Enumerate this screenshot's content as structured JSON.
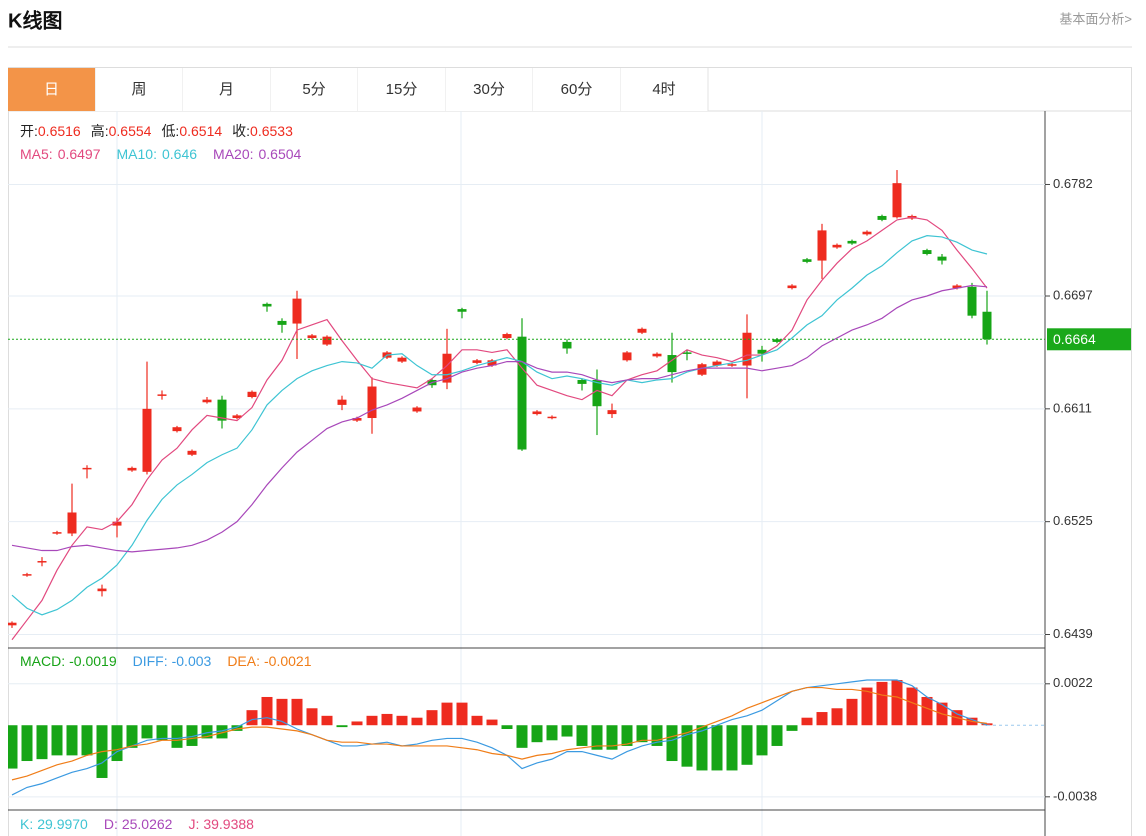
{
  "header": {
    "title": "K线图",
    "link": "基本面分析>"
  },
  "tabs": [
    "日",
    "周",
    "月",
    "5分",
    "15分",
    "30分",
    "60分",
    "4时"
  ],
  "active_tab": 0,
  "chart_data": [
    {
      "type": "candlestick",
      "ylim": [
        0.6431,
        0.6838
      ],
      "yticks": [
        0.6439,
        0.6525,
        0.6611,
        0.6697,
        0.6782
      ],
      "grid": true,
      "info": [
        {
          "label": "开:",
          "value": 0.6516
        },
        {
          "label": "高:",
          "value": 0.6554
        },
        {
          "label": "低:",
          "value": 0.6514
        },
        {
          "label": "收:",
          "value": 0.6533
        }
      ],
      "up_color": "#ee2b1f",
      "down_color": "#16a516",
      "last_price": 0.6664,
      "last_price_color": "#1aa81a",
      "open": [
        0.6446,
        0.6484,
        0.6494,
        0.6516,
        0.6516,
        0.6565,
        0.6472,
        0.6522,
        0.6564,
        0.6563,
        0.6621,
        0.6594,
        0.6576,
        0.6616,
        0.6618,
        0.6604,
        0.662,
        0.6691,
        0.6678,
        0.6676,
        0.6665,
        0.666,
        0.6614,
        0.6602,
        0.6604,
        0.665,
        0.6647,
        0.6609,
        0.6633,
        0.6631,
        0.6687,
        0.6646,
        0.6644,
        0.6665,
        0.6666,
        0.6607,
        0.6604,
        0.6662,
        0.6633,
        0.6633,
        0.6607,
        0.6648,
        0.6669,
        0.6651,
        0.6652,
        0.6654,
        0.6637,
        0.6644,
        0.6644,
        0.6644,
        0.6656,
        0.6664,
        0.6703,
        0.6725,
        0.6724,
        0.6734,
        0.6739,
        0.6744,
        0.6758,
        0.6757,
        0.6756,
        0.6732,
        0.6727,
        0.6703,
        0.6704,
        0.6685
      ],
      "high": [
        0.6449,
        0.6486,
        0.6498,
        0.6518,
        0.6554,
        0.6568,
        0.6477,
        0.6528,
        0.6567,
        0.6647,
        0.6625,
        0.6598,
        0.658,
        0.662,
        0.6621,
        0.6607,
        0.6625,
        0.6692,
        0.668,
        0.6701,
        0.6668,
        0.6667,
        0.6621,
        0.6605,
        0.6635,
        0.6655,
        0.6651,
        0.6613,
        0.6634,
        0.6672,
        0.6688,
        0.6649,
        0.6649,
        0.6669,
        0.668,
        0.661,
        0.6606,
        0.6664,
        0.6634,
        0.6641,
        0.6615,
        0.6655,
        0.6673,
        0.6654,
        0.6669,
        0.6656,
        0.6646,
        0.6648,
        0.6646,
        0.6683,
        0.6659,
        0.6665,
        0.6706,
        0.6726,
        0.6752,
        0.6737,
        0.674,
        0.6747,
        0.6759,
        0.6793,
        0.6759,
        0.6733,
        0.6729,
        0.6706,
        0.6707,
        0.6701
      ],
      "low": [
        0.6444,
        0.6483,
        0.6491,
        0.6515,
        0.6514,
        0.6558,
        0.6468,
        0.6513,
        0.6563,
        0.6561,
        0.6618,
        0.6593,
        0.6575,
        0.6615,
        0.6596,
        0.6603,
        0.6619,
        0.6685,
        0.6669,
        0.6649,
        0.6664,
        0.6659,
        0.661,
        0.6601,
        0.6592,
        0.6649,
        0.6646,
        0.6608,
        0.6627,
        0.6626,
        0.668,
        0.6645,
        0.6643,
        0.6664,
        0.6579,
        0.6606,
        0.6603,
        0.6653,
        0.6625,
        0.6591,
        0.6604,
        0.6647,
        0.6668,
        0.665,
        0.6631,
        0.6648,
        0.6636,
        0.6643,
        0.6643,
        0.6619,
        0.6647,
        0.6661,
        0.6702,
        0.6722,
        0.671,
        0.6733,
        0.6736,
        0.6743,
        0.6754,
        0.6756,
        0.6755,
        0.6728,
        0.6721,
        0.6702,
        0.668,
        0.666
      ],
      "close": [
        0.6448,
        0.6485,
        0.6495,
        0.6517,
        0.6532,
        0.6566,
        0.6474,
        0.6525,
        0.6566,
        0.6611,
        0.6622,
        0.6597,
        0.6579,
        0.6618,
        0.6602,
        0.6606,
        0.6624,
        0.6689,
        0.6675,
        0.6695,
        0.6667,
        0.6666,
        0.6618,
        0.6604,
        0.6628,
        0.6654,
        0.665,
        0.6612,
        0.6629,
        0.6653,
        0.6685,
        0.6648,
        0.6648,
        0.6668,
        0.658,
        0.6609,
        0.6605,
        0.6657,
        0.663,
        0.6613,
        0.661,
        0.6654,
        0.6672,
        0.6653,
        0.6639,
        0.6653,
        0.6645,
        0.6647,
        0.6645,
        0.6669,
        0.6653,
        0.6662,
        0.6705,
        0.6723,
        0.6747,
        0.6736,
        0.6737,
        0.6746,
        0.6755,
        0.6783,
        0.6758,
        0.6729,
        0.6724,
        0.6705,
        0.6682,
        0.6664
      ],
      "series": [
        {
          "name": "MA5:",
          "readout": 0.6497,
          "color": "#e2497f",
          "values": [
            0.6435,
            0.645,
            0.6465,
            0.6488,
            0.6507,
            0.6521,
            0.6519,
            0.6525,
            0.6538,
            0.6557,
            0.6572,
            0.6581,
            0.6595,
            0.6606,
            0.6604,
            0.6602,
            0.6612,
            0.6633,
            0.6648,
            0.6671,
            0.6675,
            0.6679,
            0.6663,
            0.6648,
            0.6634,
            0.6631,
            0.6629,
            0.6627,
            0.6634,
            0.6644,
            0.6656,
            0.6656,
            0.6654,
            0.6656,
            0.6642,
            0.6629,
            0.6625,
            0.6621,
            0.6618,
            0.6625,
            0.6621,
            0.6633,
            0.6637,
            0.664,
            0.6648,
            0.6656,
            0.6652,
            0.665,
            0.6647,
            0.6652,
            0.6652,
            0.6659,
            0.6671,
            0.6694,
            0.6709,
            0.6722,
            0.6733,
            0.6739,
            0.6747,
            0.6755,
            0.6757,
            0.6755,
            0.6747,
            0.6732,
            0.6718,
            0.6703
          ]
        },
        {
          "name": "MA10:",
          "readout": 0.646,
          "color": "#3ec4d3",
          "values": [
            0.6469,
            0.6459,
            0.6454,
            0.6458,
            0.6465,
            0.6475,
            0.6482,
            0.6492,
            0.6507,
            0.6526,
            0.6542,
            0.6553,
            0.6561,
            0.657,
            0.6576,
            0.6581,
            0.6595,
            0.6614,
            0.6625,
            0.6634,
            0.664,
            0.6644,
            0.6647,
            0.6646,
            0.6642,
            0.6652,
            0.6653,
            0.6644,
            0.6637,
            0.6637,
            0.664,
            0.6644,
            0.6647,
            0.665,
            0.6647,
            0.6639,
            0.6634,
            0.6636,
            0.6634,
            0.6631,
            0.6629,
            0.6633,
            0.6631,
            0.6633,
            0.6634,
            0.6639,
            0.6642,
            0.6644,
            0.6646,
            0.6648,
            0.6652,
            0.6656,
            0.6665,
            0.6675,
            0.6682,
            0.6694,
            0.6703,
            0.6713,
            0.672,
            0.673,
            0.6739,
            0.6743,
            0.6742,
            0.6738,
            0.6732,
            0.6729
          ]
        },
        {
          "name": "MA20:",
          "readout": 0.6504,
          "color": "#a848ba",
          "values": [
            0.6507,
            0.6505,
            0.6503,
            0.6503,
            0.6506,
            0.6507,
            0.6505,
            0.6503,
            0.6502,
            0.6503,
            0.6504,
            0.6505,
            0.6507,
            0.6511,
            0.6517,
            0.6525,
            0.6538,
            0.6553,
            0.6566,
            0.6578,
            0.6587,
            0.6596,
            0.6601,
            0.6604,
            0.661,
            0.6614,
            0.6619,
            0.6625,
            0.6631,
            0.6634,
            0.6639,
            0.6642,
            0.6644,
            0.6647,
            0.6647,
            0.6642,
            0.6639,
            0.6639,
            0.6637,
            0.6633,
            0.6631,
            0.6633,
            0.6634,
            0.6634,
            0.6637,
            0.664,
            0.6642,
            0.6642,
            0.6642,
            0.6642,
            0.664,
            0.6642,
            0.6644,
            0.665,
            0.6659,
            0.6665,
            0.6671,
            0.6675,
            0.668,
            0.6688,
            0.6694,
            0.6697,
            0.6701,
            0.6703,
            0.6705,
            0.6704
          ]
        }
      ]
    },
    {
      "type": "macd",
      "ylim": [
        -0.0045,
        0.0041
      ],
      "yticks": [
        -0.0038,
        0.0022
      ],
      "grid": true,
      "name": "MACD:",
      "readout": -0.0019,
      "color": "#17a317",
      "up_color": "#ee2b1f",
      "down_color": "#16a516",
      "values": [
        -0.0023,
        -0.0019,
        -0.0018,
        -0.0016,
        -0.0016,
        -0.0016,
        -0.0028,
        -0.0019,
        -0.0012,
        -0.0007,
        -0.0008,
        -0.0012,
        -0.0011,
        -0.0007,
        -0.0007,
        -0.0003,
        0.0008,
        0.0015,
        0.0014,
        0.0014,
        0.0009,
        0.0005,
        -0.0001,
        0.0002,
        0.0005,
        0.0006,
        0.0005,
        0.0004,
        0.0008,
        0.0012,
        0.0012,
        0.0005,
        0.0003,
        -0.0002,
        -0.0012,
        -0.0009,
        -0.0008,
        -0.0006,
        -0.0011,
        -0.0013,
        -0.0013,
        -0.0011,
        -0.0009,
        -0.0011,
        -0.0019,
        -0.0022,
        -0.0024,
        -0.0024,
        -0.0024,
        -0.0021,
        -0.0016,
        -0.0011,
        -0.0003,
        0.0004,
        0.0007,
        0.0009,
        0.0014,
        0.002,
        0.0023,
        0.0024,
        0.002,
        0.0015,
        0.0012,
        0.0008,
        0.0004,
        0.0001
      ],
      "series": [
        {
          "name": "DIFF:",
          "readout": -0.003,
          "color": "#3b9ae1",
          "values": [
            -0.0037,
            -0.0033,
            -0.0031,
            -0.0028,
            -0.0025,
            -0.0023,
            -0.002,
            -0.0014,
            -0.0011,
            -0.0008,
            -0.0007,
            -0.0007,
            -0.0006,
            -0.0004,
            -0.0003,
            -0.0001,
            0.0003,
            0.0004,
            0.0002,
            -0.0002,
            -0.0005,
            -0.0008,
            -0.0011,
            -0.0011,
            -0.001,
            -0.0009,
            -0.0011,
            -0.001,
            -0.0008,
            -0.0007,
            -0.0007,
            -0.0009,
            -0.0012,
            -0.0016,
            -0.0023,
            -0.002,
            -0.0018,
            -0.0014,
            -0.0014,
            -0.0016,
            -0.0018,
            -0.0014,
            -0.0011,
            -0.0009,
            -0.0008,
            -0.0005,
            -0.0003,
            0,
            0.0003,
            0.0005,
            0.0008,
            0.0013,
            0.0018,
            0.002,
            0.0021,
            0.0022,
            0.0023,
            0.0024,
            0.0024,
            0.0024,
            0.0021,
            0.0015,
            0.0011,
            0.0006,
            0.0003,
            0
          ]
        },
        {
          "name": "DEA:",
          "readout": -0.0021,
          "color": "#f07d18",
          "values": [
            -0.0029,
            -0.0027,
            -0.0024,
            -0.0021,
            -0.0019,
            -0.0016,
            -0.0014,
            -0.0013,
            -0.0011,
            -0.001,
            -0.0008,
            -0.0008,
            -0.0007,
            -0.0006,
            -0.0004,
            -0.0002,
            -0.0001,
            -0.0001,
            -0.0002,
            -0.0003,
            -0.0005,
            -0.0008,
            -0.0009,
            -0.0009,
            -0.001,
            -0.001,
            -0.0011,
            -0.0011,
            -0.0011,
            -0.0011,
            -0.0012,
            -0.0013,
            -0.0015,
            -0.0016,
            -0.0018,
            -0.0016,
            -0.0015,
            -0.0013,
            -0.0012,
            -0.0011,
            -0.0011,
            -0.001,
            -0.0008,
            -0.0008,
            -0.0006,
            -0.0004,
            -0.0001,
            0.0002,
            0.0005,
            0.0009,
            0.0012,
            0.0015,
            0.0018,
            0.002,
            0.002,
            0.0019,
            0.0019,
            0.0018,
            0.0016,
            0.0015,
            0.0012,
            0.0009,
            0.0006,
            0.0004,
            0.0002,
            0.0001
          ]
        }
      ]
    }
  ],
  "kdj": [
    {
      "name": "K:",
      "value": 29.997,
      "value_label": "29.9970",
      "color": "#3ec4d3"
    },
    {
      "name": "D:",
      "value": 25.0262,
      "color": "#a848ba"
    },
    {
      "name": "J:",
      "value": 39.9388,
      "color": "#e2497f"
    }
  ]
}
